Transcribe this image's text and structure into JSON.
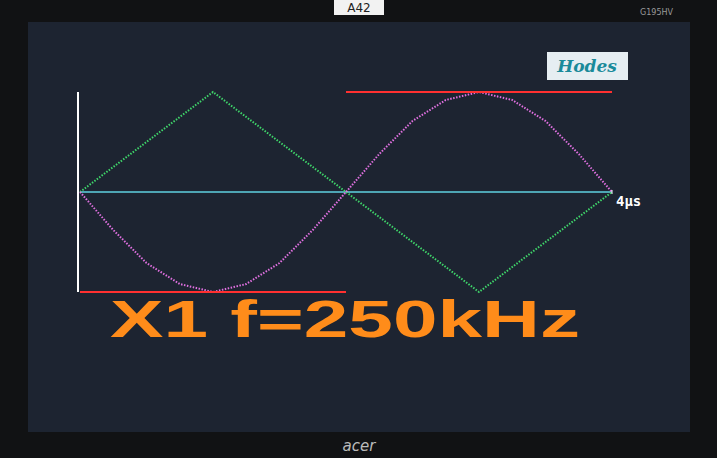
{
  "chart_data": {
    "type": "line",
    "annotations": [
      "X1 f=250kHz",
      "Hodes",
      "A42",
      "G195HV",
      "acer"
    ],
    "x": [
      0,
      0.25,
      0.5,
      0.75,
      1,
      1.25,
      1.5,
      1.75,
      2,
      2.25,
      2.5,
      2.75,
      3,
      3.25,
      3.5,
      3.75,
      4
    ],
    "xlim": [
      0,
      4
    ],
    "xticks": [
      {
        "value": 4,
        "label": "4μs"
      }
    ],
    "ylim": [
      -1,
      1
    ],
    "yticks": [],
    "tick_labels": "x",
    "grid": false,
    "series": [
      {
        "color": "#3fd46a",
        "line_style": "dotted",
        "values": [
          0,
          0.25,
          0.5,
          0.75,
          1,
          0.75,
          0.5,
          0.25,
          0,
          -0.25,
          -0.5,
          -0.75,
          -1,
          -0.75,
          -0.5,
          -0.25,
          0
        ]
      },
      {
        "color": "#e070e0",
        "line_style": "dotted",
        "values": [
          0,
          -0.38,
          -0.71,
          -0.92,
          -1,
          -0.92,
          -0.71,
          -0.38,
          0,
          0.38,
          0.71,
          0.92,
          1,
          0.92,
          0.71,
          0.38,
          0
        ]
      },
      {
        "color": "#ff3030",
        "line_style": "solid",
        "values": [
          null,
          null,
          null,
          null,
          null,
          null,
          null,
          null,
          1,
          1,
          1,
          1,
          1,
          1,
          1,
          1,
          1
        ]
      },
      {
        "color": "#ff3030",
        "line_style": "solid",
        "values": [
          -1,
          -1,
          -1,
          -1,
          -1,
          -1,
          -1,
          -1,
          -1,
          null,
          null,
          null,
          null,
          null,
          null,
          null,
          null
        ]
      }
    ]
  }
}
